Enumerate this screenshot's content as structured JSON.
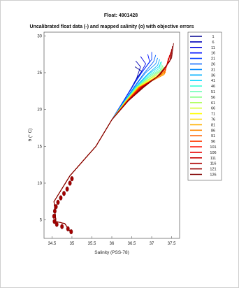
{
  "figure": {
    "title": "Float: 4901428"
  },
  "chart_data": {
    "type": "line",
    "title": "Uncalibrated float data (-) and mapped salinity (o) with objective errors",
    "xlabel": "Salinity (PSS-78)",
    "ylabel": "θ (° C)",
    "xlim": [
      34.3,
      37.7
    ],
    "ylim": [
      2.5,
      30.5
    ],
    "xticks": [
      "34.5",
      "35",
      "35.5",
      "36",
      "36.5",
      "37",
      "37.5"
    ],
    "yticks": [
      "5",
      "10",
      "15",
      "20",
      "25",
      "30"
    ],
    "grid": false,
    "legend_position": "right-outside",
    "legend": [
      "1",
      "6",
      "11",
      "16",
      "21",
      "26",
      "31",
      "36",
      "41",
      "46",
      "51",
      "56",
      "61",
      "66",
      "71",
      "76",
      "81",
      "86",
      "91",
      "96",
      "101",
      "106",
      "111",
      "116",
      "121",
      "126"
    ],
    "colors": [
      "#00008f",
      "#0000b8",
      "#0000e0",
      "#0010ff",
      "#0038ff",
      "#0060ff",
      "#0088ff",
      "#00b0ff",
      "#10d8ff",
      "#38ffd8",
      "#60ffb0",
      "#88ff88",
      "#b0ff60",
      "#d8ff38",
      "#ffff00",
      "#ffd800",
      "#ffb000",
      "#ff8800",
      "#ff6000",
      "#ff3800",
      "#ff1000",
      "#e80000",
      "#c80000",
      "#ad0000",
      "#960000",
      "#800000"
    ],
    "series": [
      {
        "name": "1",
        "x": [
          34.95,
          34.82,
          34.6,
          34.55,
          34.95,
          35.6,
          36.0,
          36.3,
          36.48,
          36.6,
          36.75,
          36.58
        ],
        "y": [
          3.5,
          4.5,
          4.8,
          7.5,
          11.0,
          15.0,
          18.6,
          21.2,
          22.8,
          24.0,
          25.2,
          25.8
        ]
      },
      {
        "name": "6",
        "x": [
          34.95,
          34.82,
          34.6,
          34.55,
          34.95,
          35.6,
          36.0,
          36.3,
          36.48,
          36.62,
          36.72,
          36.6
        ],
        "y": [
          3.5,
          4.5,
          4.8,
          7.5,
          11.0,
          15.0,
          18.6,
          21.2,
          22.8,
          24.2,
          25.8,
          26.6
        ]
      },
      {
        "name": "11",
        "x": [
          34.95,
          34.82,
          34.6,
          34.55,
          34.95,
          35.6,
          36.0,
          36.3,
          36.5,
          36.68,
          36.85,
          36.72
        ],
        "y": [
          3.5,
          4.5,
          4.8,
          7.5,
          11.0,
          15.0,
          18.6,
          21.2,
          22.9,
          24.5,
          26.2,
          27.2
        ]
      },
      {
        "name": "16",
        "x": [
          34.95,
          34.82,
          34.6,
          34.55,
          34.95,
          35.6,
          36.0,
          36.3,
          36.5,
          36.72,
          36.95,
          36.9
        ],
        "y": [
          3.5,
          4.5,
          4.8,
          7.5,
          11.0,
          15.0,
          18.6,
          21.2,
          23.0,
          24.8,
          26.5,
          27.5
        ]
      },
      {
        "name": "21",
        "x": [
          34.95,
          34.82,
          34.6,
          34.55,
          34.95,
          35.6,
          36.0,
          36.3,
          36.5,
          36.75,
          37.0,
          37.0
        ],
        "y": [
          3.5,
          4.5,
          4.8,
          7.5,
          11.0,
          15.0,
          18.6,
          21.2,
          23.0,
          25.0,
          26.8,
          27.8
        ]
      },
      {
        "name": "26",
        "x": [
          34.95,
          34.82,
          34.6,
          34.55,
          34.95,
          35.6,
          36.0,
          36.32,
          36.55,
          36.82,
          37.05,
          37.1
        ],
        "y": [
          3.5,
          4.5,
          4.8,
          7.5,
          11.0,
          15.0,
          18.6,
          21.2,
          23.0,
          25.0,
          26.5,
          27.4
        ]
      },
      {
        "name": "31",
        "x": [
          34.95,
          34.82,
          34.6,
          34.55,
          34.95,
          35.6,
          36.0,
          36.32,
          36.56,
          36.85,
          37.1,
          37.15
        ],
        "y": [
          3.5,
          4.5,
          4.8,
          7.5,
          11.0,
          15.0,
          18.6,
          21.2,
          23.0,
          25.0,
          26.2,
          27.0
        ]
      },
      {
        "name": "36",
        "x": [
          34.95,
          34.82,
          34.6,
          34.55,
          34.95,
          35.6,
          36.0,
          36.33,
          36.58,
          36.9,
          37.15,
          37.2
        ],
        "y": [
          3.5,
          4.5,
          4.8,
          7.5,
          11.0,
          15.0,
          18.6,
          21.2,
          23.0,
          24.8,
          26.0,
          26.8
        ]
      },
      {
        "name": "41",
        "x": [
          34.95,
          34.82,
          34.6,
          34.55,
          34.95,
          35.6,
          36.0,
          36.34,
          36.6,
          36.92,
          37.18,
          37.25
        ],
        "y": [
          3.5,
          4.5,
          4.8,
          7.5,
          11.0,
          15.0,
          18.6,
          21.2,
          23.0,
          24.8,
          25.8,
          26.5
        ]
      },
      {
        "name": "46",
        "x": [
          34.95,
          34.82,
          34.6,
          34.55,
          34.95,
          35.6,
          36.0,
          36.34,
          36.6,
          36.95,
          37.2,
          37.22
        ],
        "y": [
          3.5,
          4.5,
          4.8,
          7.5,
          11.0,
          15.0,
          18.6,
          21.2,
          23.0,
          24.7,
          25.6,
          26.4
        ]
      },
      {
        "name": "51",
        "x": [
          34.95,
          34.82,
          34.6,
          34.55,
          34.95,
          35.6,
          36.0,
          36.35,
          36.62,
          36.96,
          37.22,
          37.25
        ],
        "y": [
          3.5,
          4.5,
          4.8,
          7.5,
          11.0,
          15.0,
          18.6,
          21.2,
          23.0,
          24.6,
          25.4,
          26.2
        ]
      },
      {
        "name": "56",
        "x": [
          34.95,
          34.82,
          34.6,
          34.55,
          34.95,
          35.6,
          36.0,
          36.35,
          36.62,
          36.98,
          37.24,
          37.28
        ],
        "y": [
          3.5,
          4.5,
          4.8,
          7.5,
          11.0,
          15.0,
          18.6,
          21.2,
          23.0,
          24.5,
          25.3,
          26.0
        ]
      },
      {
        "name": "61",
        "x": [
          34.95,
          34.82,
          34.6,
          34.55,
          34.95,
          35.6,
          36.0,
          36.36,
          36.64,
          37.0,
          37.25,
          37.3
        ],
        "y": [
          3.5,
          4.5,
          4.8,
          7.5,
          11.0,
          15.0,
          18.6,
          21.2,
          23.0,
          24.4,
          25.2,
          25.8
        ]
      },
      {
        "name": "66",
        "x": [
          34.95,
          34.82,
          34.6,
          34.55,
          34.95,
          35.6,
          36.0,
          36.36,
          36.65,
          37.0,
          37.26,
          37.3
        ],
        "y": [
          3.5,
          4.5,
          4.8,
          7.5,
          11.0,
          15.0,
          18.6,
          21.2,
          23.0,
          24.3,
          25.0,
          25.6
        ]
      },
      {
        "name": "71",
        "x": [
          34.95,
          34.82,
          34.6,
          34.55,
          34.95,
          35.6,
          36.0,
          36.37,
          36.66,
          37.02,
          37.28,
          37.32
        ],
        "y": [
          3.5,
          4.5,
          4.8,
          7.5,
          11.0,
          15.0,
          18.6,
          21.2,
          23.0,
          24.2,
          24.9,
          25.4
        ]
      },
      {
        "name": "76",
        "x": [
          34.95,
          34.82,
          34.6,
          34.55,
          34.95,
          35.6,
          36.0,
          36.37,
          36.67,
          37.03,
          37.28,
          37.33
        ],
        "y": [
          3.5,
          4.5,
          4.8,
          7.5,
          11.0,
          15.0,
          18.6,
          21.2,
          23.0,
          24.1,
          24.8,
          25.2
        ]
      },
      {
        "name": "81",
        "x": [
          34.95,
          34.82,
          34.6,
          34.55,
          34.95,
          35.6,
          36.0,
          36.38,
          36.68,
          37.05,
          37.3,
          37.35
        ],
        "y": [
          3.5,
          4.5,
          4.8,
          7.5,
          11.0,
          15.0,
          18.6,
          21.2,
          23.0,
          24.0,
          24.7,
          25.1
        ]
      },
      {
        "name": "86",
        "x": [
          34.95,
          34.82,
          34.6,
          34.55,
          34.95,
          35.6,
          36.0,
          36.38,
          36.68,
          37.05,
          37.32,
          37.36
        ],
        "y": [
          3.5,
          4.5,
          4.8,
          7.5,
          11.0,
          15.0,
          18.6,
          21.2,
          23.0,
          24.0,
          24.8,
          25.5
        ]
      },
      {
        "name": "91",
        "x": [
          34.95,
          34.82,
          34.6,
          34.55,
          34.95,
          35.6,
          36.0,
          36.39,
          36.69,
          37.06,
          37.32,
          37.38
        ],
        "y": [
          3.5,
          4.5,
          4.8,
          7.5,
          11.0,
          15.0,
          18.6,
          21.2,
          23.0,
          24.1,
          25.0,
          26.0
        ]
      },
      {
        "name": "96",
        "x": [
          34.95,
          34.82,
          34.6,
          34.55,
          34.95,
          35.6,
          36.0,
          36.39,
          36.7,
          37.08,
          37.34,
          37.4
        ],
        "y": [
          3.5,
          4.5,
          4.8,
          7.5,
          11.0,
          15.0,
          18.6,
          21.2,
          23.0,
          24.2,
          25.3,
          26.5
        ]
      },
      {
        "name": "101",
        "x": [
          34.95,
          34.82,
          34.6,
          34.55,
          34.95,
          35.6,
          36.0,
          36.4,
          36.72,
          37.1,
          37.36,
          37.42
        ],
        "y": [
          3.5,
          4.5,
          4.8,
          7.5,
          11.0,
          15.0,
          18.6,
          21.2,
          23.0,
          24.3,
          25.6,
          27.0
        ]
      },
      {
        "name": "106",
        "x": [
          34.95,
          34.82,
          34.6,
          34.55,
          34.95,
          35.6,
          36.0,
          36.4,
          36.73,
          37.12,
          37.38,
          37.45
        ],
        "y": [
          3.5,
          4.5,
          4.8,
          7.5,
          11.0,
          15.0,
          18.6,
          21.2,
          23.0,
          24.4,
          25.9,
          27.4
        ]
      },
      {
        "name": "111",
        "x": [
          34.95,
          34.82,
          34.6,
          34.55,
          34.95,
          35.6,
          36.0,
          36.41,
          36.75,
          37.15,
          37.4,
          37.48
        ],
        "y": [
          3.5,
          4.5,
          4.8,
          7.5,
          11.0,
          15.0,
          18.6,
          21.2,
          23.0,
          24.5,
          26.2,
          27.8
        ]
      },
      {
        "name": "116",
        "x": [
          34.95,
          34.82,
          34.6,
          34.55,
          34.95,
          35.6,
          36.0,
          36.41,
          36.76,
          37.18,
          37.45,
          37.5
        ],
        "y": [
          3.5,
          4.5,
          4.8,
          7.5,
          11.0,
          15.0,
          18.6,
          21.2,
          23.0,
          24.6,
          26.5,
          28.2
        ]
      },
      {
        "name": "121",
        "x": [
          34.95,
          34.82,
          34.6,
          34.55,
          34.95,
          35.6,
          36.0,
          36.42,
          36.78,
          37.2,
          37.48,
          37.52
        ],
        "y": [
          3.5,
          4.5,
          4.8,
          7.5,
          11.0,
          15.0,
          18.6,
          21.2,
          23.0,
          24.7,
          26.8,
          28.6
        ]
      },
      {
        "name": "126",
        "x": [
          34.95,
          34.82,
          34.6,
          34.55,
          34.95,
          35.6,
          36.0,
          36.42,
          36.8,
          37.22,
          37.5,
          37.55
        ],
        "y": [
          3.5,
          4.5,
          4.8,
          7.5,
          11.0,
          15.0,
          18.6,
          21.2,
          23.0,
          24.8,
          27.0,
          29.0
        ]
      }
    ],
    "mapped_salinity": {
      "x": [
        34.98,
        34.9,
        34.75,
        34.62,
        34.56,
        34.55,
        34.57,
        34.6,
        34.65,
        34.72,
        34.8,
        34.88,
        34.95,
        35.0
      ],
      "y": [
        3.4,
        3.8,
        4.1,
        4.4,
        4.8,
        5.5,
        6.2,
        6.8,
        7.4,
        8.0,
        8.6,
        9.2,
        10.0,
        10.6
      ]
    }
  }
}
